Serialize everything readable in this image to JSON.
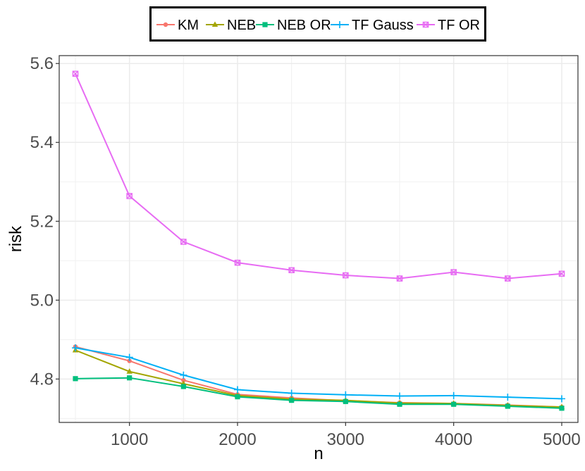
{
  "chart_data": {
    "type": "line",
    "title": "",
    "xlabel": "n",
    "ylabel": "risk",
    "xlim": [
      350,
      5150
    ],
    "ylim": [
      4.69,
      5.62
    ],
    "x_ticks": [
      1000,
      2000,
      3000,
      4000,
      5000
    ],
    "y_ticks": [
      4.8,
      5.0,
      5.2,
      5.4,
      5.6
    ],
    "x_tick_labels": [
      "1000",
      "2000",
      "3000",
      "4000",
      "5000"
    ],
    "y_tick_labels": [
      "4.8",
      "5.0",
      "5.2",
      "5.4",
      "5.6"
    ],
    "grid": true,
    "legend_position": "top",
    "x": [
      500,
      1000,
      1500,
      2000,
      2500,
      3000,
      3500,
      4000,
      4500,
      5000
    ],
    "series": [
      {
        "name": "KM",
        "color": "#F8766D",
        "marker": "circle",
        "values": [
          4.882,
          4.846,
          4.797,
          4.761,
          4.752,
          4.745,
          4.74,
          4.738,
          4.734,
          4.729
        ]
      },
      {
        "name": "NEB",
        "color": "#A3A500",
        "marker": "triangle",
        "values": [
          4.873,
          4.819,
          4.788,
          4.758,
          4.749,
          4.746,
          4.739,
          4.738,
          4.733,
          4.729
        ]
      },
      {
        "name": "NEB OR",
        "color": "#00BF7D",
        "marker": "square",
        "values": [
          4.801,
          4.803,
          4.781,
          4.755,
          4.746,
          4.743,
          4.736,
          4.736,
          4.731,
          4.726
        ]
      },
      {
        "name": "TF Gauss",
        "color": "#00B0F6",
        "marker": "plus",
        "values": [
          4.879,
          4.855,
          4.81,
          4.773,
          4.764,
          4.76,
          4.757,
          4.758,
          4.754,
          4.75
        ]
      },
      {
        "name": "TF OR",
        "color": "#E76BF3",
        "marker": "boxcross",
        "values": [
          5.574,
          5.264,
          5.148,
          5.095,
          5.076,
          5.063,
          5.055,
          5.071,
          5.055,
          5.067
        ]
      }
    ]
  }
}
